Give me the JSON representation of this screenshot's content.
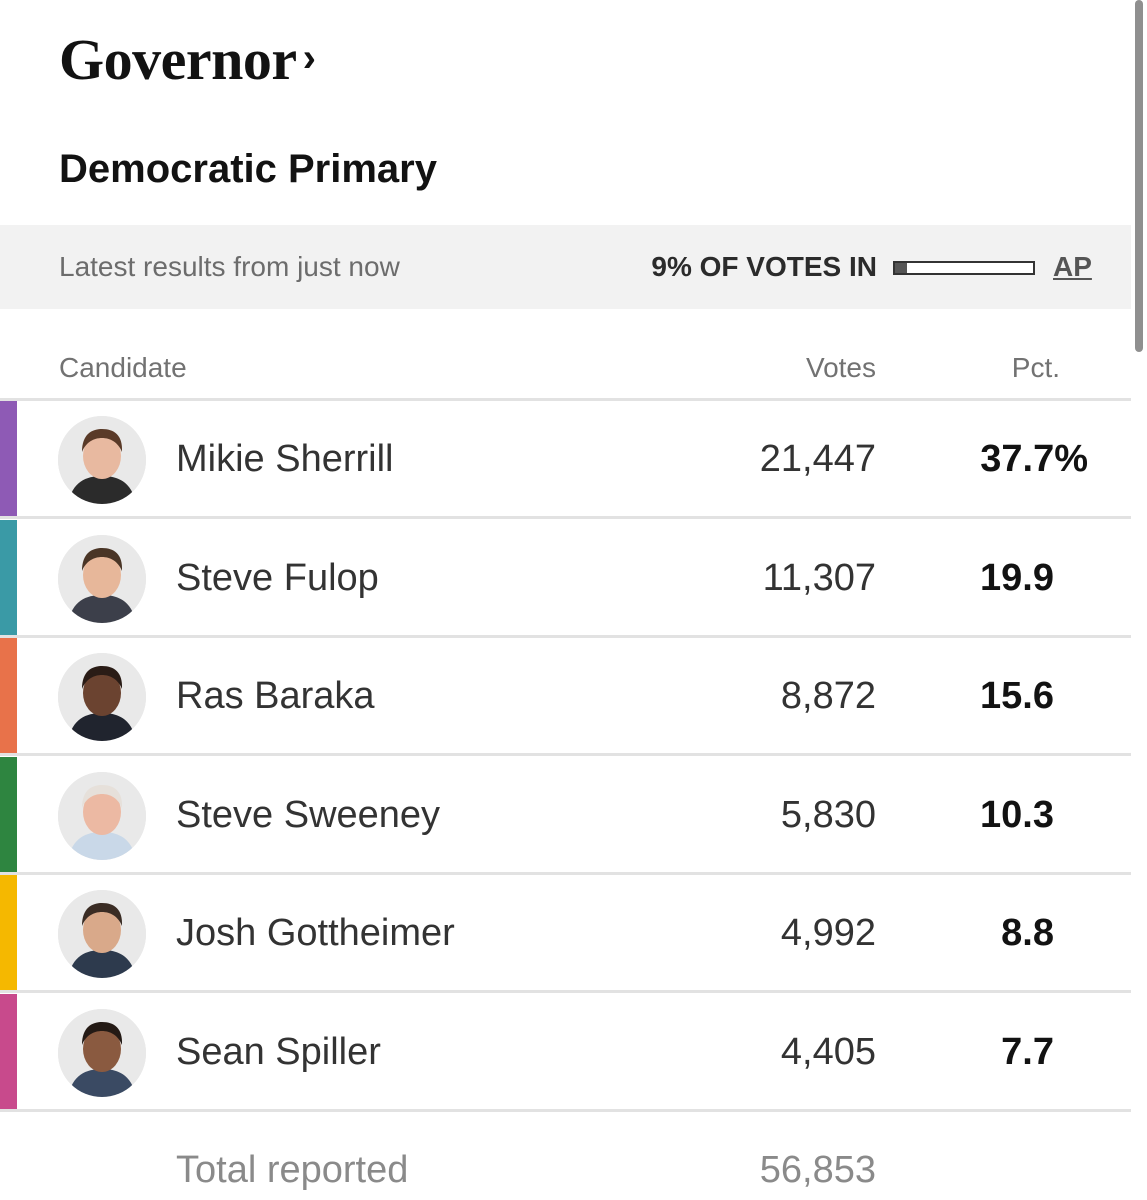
{
  "race": {
    "title": "Governor",
    "chevron": "›",
    "subtitle": "Democratic Primary"
  },
  "status": {
    "latest": "Latest results from just now",
    "votes_in_label": "9% OF VOTES IN",
    "votes_in_fraction": 0.09,
    "source": "AP"
  },
  "table": {
    "headers": {
      "candidate": "Candidate",
      "votes": "Votes",
      "pct": "Pct."
    },
    "rows": [
      {
        "name": "Mikie Sherrill",
        "votes": "21,447",
        "pct": "37.7%",
        "color": "#8e5ab5",
        "avatar": "woman-portrait-icon",
        "skin": "#e8b9a0",
        "hair": "#5a3a28",
        "shirt": "#2b2b2b"
      },
      {
        "name": "Steve Fulop",
        "votes": "11,307",
        "pct": "19.9",
        "color": "#3a9aa6",
        "avatar": "man-portrait-icon",
        "skin": "#e7b79a",
        "hair": "#4a3526",
        "shirt": "#3c3f4a"
      },
      {
        "name": "Ras Baraka",
        "votes": "8,872",
        "pct": "15.6",
        "color": "#e8724a",
        "avatar": "man-portrait-icon",
        "skin": "#6b4330",
        "hair": "#2a1c16",
        "shirt": "#20242e"
      },
      {
        "name": "Steve Sweeney",
        "votes": "5,830",
        "pct": "10.3",
        "color": "#2e8540",
        "avatar": "man-portrait-icon",
        "skin": "#ecb9a3",
        "hair": "#e6e0da",
        "shirt": "#c9d8e8"
      },
      {
        "name": "Josh Gottheimer",
        "votes": "4,992",
        "pct": "8.8",
        "color": "#f5b800",
        "avatar": "man-portrait-icon",
        "skin": "#d9a98a",
        "hair": "#3a2c24",
        "shirt": "#2d3a4d"
      },
      {
        "name": "Sean Spiller",
        "votes": "4,405",
        "pct": "7.7",
        "color": "#c84a8c",
        "avatar": "man-portrait-icon",
        "skin": "#8a5a40",
        "hair": "#241a15",
        "shirt": "#3a4a63"
      }
    ],
    "total_label": "Total reported",
    "total_votes": "56,853"
  }
}
